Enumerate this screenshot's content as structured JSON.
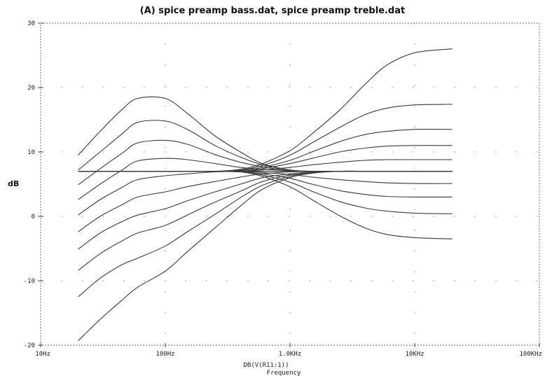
{
  "chart_data": {
    "type": "line",
    "title": "(A) spice preamp bass.dat, spice preamp treble.dat",
    "ylabel": "dB",
    "xlabel_lines": [
      "DB(V(R11:1))",
      "Frequency"
    ],
    "x_scale": "log",
    "xlim": [
      10,
      100000
    ],
    "ylim": [
      -20,
      30
    ],
    "x_ticks": [
      {
        "value": 10,
        "label": "10Hz"
      },
      {
        "value": 100,
        "label": "100Hz"
      },
      {
        "value": 1000,
        "label": "1.0KHz"
      },
      {
        "value": 10000,
        "label": "10KHz"
      },
      {
        "value": 100000,
        "label": "100KHz"
      }
    ],
    "y_ticks": [
      {
        "value": 30,
        "label": "30"
      },
      {
        "value": 20,
        "label": "20"
      },
      {
        "value": 10,
        "label": "10"
      },
      {
        "value": 0,
        "label": "0"
      },
      {
        "value": -10,
        "label": "-10"
      },
      {
        "value": -20,
        "label": "-20"
      }
    ],
    "grid": true,
    "line_color": "#3a3a3a",
    "x": [
      20,
      30,
      45,
      60,
      100,
      150,
      250,
      400,
      600,
      1000,
      1500,
      2500,
      4000,
      6000,
      10000,
      20000
    ],
    "series": [
      {
        "values": [
          9.5,
          13.2,
          16.6,
          18.3,
          18.3,
          16.0,
          12.5,
          10.0,
          8.2,
          7.2,
          7.0,
          7.0,
          7.0,
          7.0,
          7.0,
          7.0
        ]
      },
      {
        "values": [
          7.2,
          10.0,
          12.8,
          14.6,
          14.8,
          13.5,
          11.0,
          9.2,
          8.0,
          7.2,
          7.0,
          7.0,
          7.0,
          7.0,
          7.0,
          7.0
        ]
      },
      {
        "values": [
          4.9,
          7.4,
          9.8,
          11.4,
          11.8,
          11.2,
          9.6,
          8.4,
          7.7,
          7.1,
          7.0,
          7.0,
          7.0,
          7.0,
          7.0,
          7.0
        ]
      },
      {
        "values": [
          2.6,
          5.0,
          7.2,
          8.6,
          9.0,
          8.8,
          8.2,
          7.6,
          7.3,
          7.1,
          7.0,
          7.0,
          7.0,
          7.0,
          7.0,
          7.0
        ]
      },
      {
        "values": [
          0.2,
          2.6,
          4.5,
          5.7,
          6.3,
          6.6,
          6.9,
          7.0,
          7.0,
          7.0,
          7.0,
          7.0,
          7.0,
          7.0,
          7.0,
          7.0
        ]
      },
      {
        "values": [
          -2.4,
          0.0,
          1.8,
          3.0,
          3.8,
          4.6,
          5.4,
          6.1,
          6.6,
          6.9,
          7.0,
          7.0,
          7.0,
          7.0,
          7.0,
          7.0
        ]
      },
      {
        "values": [
          -5.1,
          -2.6,
          -0.8,
          0.2,
          1.2,
          2.4,
          3.8,
          5.0,
          6.0,
          6.6,
          6.9,
          7.0,
          7.0,
          7.0,
          7.0,
          7.0
        ]
      },
      {
        "values": [
          -8.4,
          -5.8,
          -3.8,
          -2.6,
          -1.4,
          0.2,
          2.2,
          3.9,
          5.4,
          6.4,
          6.8,
          7.0,
          7.0,
          7.0,
          7.0,
          7.0
        ]
      },
      {
        "values": [
          -12.5,
          -9.6,
          -7.5,
          -6.5,
          -4.6,
          -2.4,
          0.3,
          2.9,
          4.8,
          6.2,
          6.8,
          7.0,
          7.0,
          7.0,
          7.0,
          7.0
        ]
      },
      {
        "values": [
          -19.3,
          -16.0,
          -13.0,
          -11.0,
          -8.5,
          -5.5,
          -1.8,
          1.6,
          4.2,
          6.0,
          6.7,
          7.0,
          7.0,
          7.0,
          7.0,
          7.0
        ]
      },
      {
        "values": [
          7.0,
          7.0,
          7.0,
          7.0,
          7.0,
          7.0,
          7.0,
          7.3,
          8.2,
          10.2,
          12.8,
          16.5,
          20.5,
          23.5,
          25.4,
          26.0
        ]
      },
      {
        "values": [
          7.0,
          7.0,
          7.0,
          7.0,
          7.0,
          7.0,
          7.0,
          7.2,
          7.9,
          9.5,
          11.4,
          13.8,
          15.8,
          16.8,
          17.3,
          17.4
        ]
      },
      {
        "values": [
          7.0,
          7.0,
          7.0,
          7.0,
          7.0,
          7.0,
          7.0,
          7.1,
          7.6,
          8.7,
          10.0,
          11.6,
          12.7,
          13.2,
          13.5,
          13.5
        ]
      },
      {
        "values": [
          7.0,
          7.0,
          7.0,
          7.0,
          7.0,
          7.0,
          7.0,
          7.0,
          7.4,
          8.2,
          9.0,
          10.0,
          10.6,
          10.9,
          11.0,
          11.0
        ]
      },
      {
        "values": [
          7.0,
          7.0,
          7.0,
          7.0,
          7.0,
          7.0,
          7.0,
          7.0,
          7.2,
          7.6,
          8.0,
          8.4,
          8.7,
          8.8,
          8.8,
          8.8
        ]
      },
      {
        "values": [
          7.0,
          7.0,
          7.0,
          7.0,
          7.0,
          7.0,
          7.0,
          7.0,
          7.0,
          7.0,
          7.0,
          7.0,
          7.0,
          7.0,
          7.0,
          7.0
        ]
      },
      {
        "values": [
          7.0,
          7.0,
          7.0,
          7.0,
          7.0,
          7.0,
          7.0,
          7.0,
          6.8,
          6.5,
          6.1,
          5.7,
          5.4,
          5.2,
          5.1,
          5.1
        ]
      },
      {
        "values": [
          7.0,
          7.0,
          7.0,
          7.0,
          7.0,
          7.0,
          7.0,
          6.9,
          6.6,
          5.9,
          5.0,
          4.0,
          3.4,
          3.1,
          3.0,
          3.0
        ]
      },
      {
        "values": [
          7.0,
          7.0,
          7.0,
          7.0,
          7.0,
          7.0,
          7.0,
          6.9,
          6.4,
          5.3,
          3.9,
          2.3,
          1.3,
          0.8,
          0.5,
          0.4
        ]
      },
      {
        "values": [
          7.0,
          7.0,
          7.0,
          7.0,
          7.0,
          7.0,
          7.0,
          6.9,
          6.2,
          4.6,
          2.6,
          0.1,
          -1.8,
          -2.8,
          -3.3,
          -3.5
        ]
      }
    ]
  }
}
